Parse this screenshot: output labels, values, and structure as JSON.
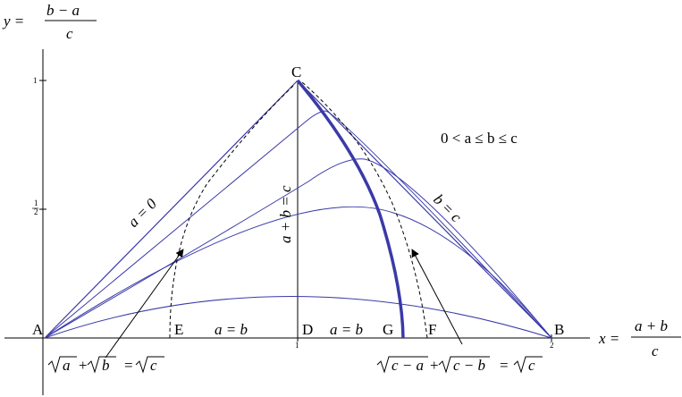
{
  "y_axis": {
    "lhs": "y =",
    "num": "b − a",
    "den": "c"
  },
  "x_axis": {
    "lhs": "x =",
    "num": "a + b",
    "den": "c"
  },
  "ticks": {
    "y_one": "1",
    "y_half_num": "1",
    "y_half_den": "2",
    "x_one": "1",
    "x_two": "2"
  },
  "points": {
    "A": "A",
    "B": "B",
    "C": "C",
    "D": "D",
    "E": "E",
    "F": "F",
    "G": "G"
  },
  "edge_labels": {
    "a_zero": "a = 0",
    "b_eq_c": "b = c",
    "a_plus_b_eq_c": "a + b = c",
    "a_eq_b_left": "a = b",
    "a_eq_b_right": "a = b"
  },
  "condition": "0 < a ≤ b ≤ c",
  "eq_left": {
    "t1": "a",
    "plus": "+",
    "t2": "b",
    "eq": "=",
    "t3": "c"
  },
  "eq_right": {
    "t1": "c − a",
    "plus": "+",
    "t2": "c − b",
    "eq": "=",
    "t3": "c"
  },
  "colors": {
    "curves": "#3a3aa8",
    "axes": "#000000"
  }
}
